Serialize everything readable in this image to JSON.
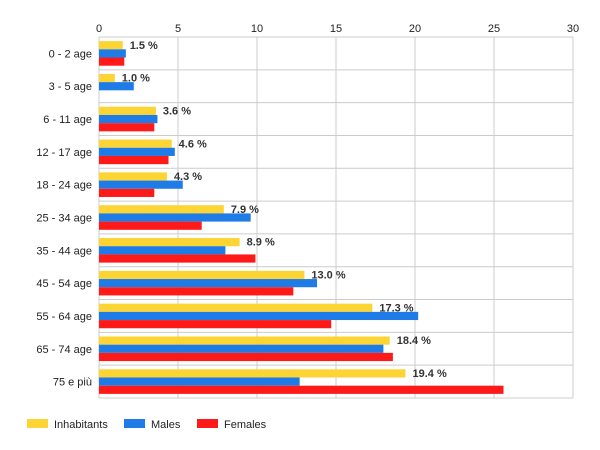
{
  "chart_data": {
    "type": "bar",
    "orientation": "horizontal",
    "categories": [
      "0 - 2 age",
      "3 - 5 age",
      "6 - 11 age",
      "12 - 17 age",
      "18 - 24 age",
      "25 - 34 age",
      "35 - 44 age",
      "45 - 54 age",
      "55 - 64 age",
      "65 - 74 age",
      "75 e più"
    ],
    "series": [
      {
        "name": "Inhabitants",
        "color": "#fcd535",
        "values": [
          1.5,
          1.0,
          3.6,
          4.6,
          4.3,
          7.9,
          8.9,
          13.0,
          17.3,
          18.4,
          19.4
        ]
      },
      {
        "name": "Males",
        "color": "#1f7be6",
        "values": [
          1.7,
          2.2,
          3.7,
          4.8,
          5.3,
          9.6,
          8.0,
          13.8,
          20.2,
          18.0,
          12.7
        ]
      },
      {
        "name": "Females",
        "color": "#ff1a1a",
        "values": [
          1.6,
          0.0,
          3.5,
          4.4,
          3.5,
          6.5,
          9.9,
          12.3,
          14.7,
          18.6,
          25.6
        ]
      }
    ],
    "data_labels": [
      "1.5 %",
      "1.0 %",
      "3.6 %",
      "4.6 %",
      "4.3 %",
      "7.9 %",
      "8.9 %",
      "13.0 %",
      "17.3 %",
      "18.4 %",
      "19.4 %"
    ],
    "xlim": [
      0,
      30
    ],
    "xticks": [
      0,
      5,
      10,
      15,
      20,
      25,
      30
    ],
    "xaxis_position": "top",
    "grid": true,
    "legend_position": "bottom-left",
    "title": "",
    "xlabel": "",
    "ylabel": ""
  }
}
